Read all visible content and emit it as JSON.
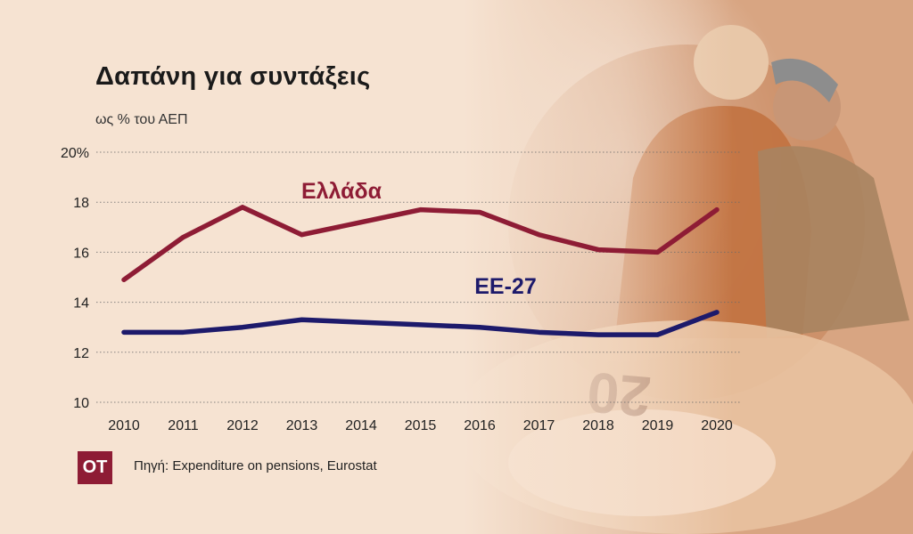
{
  "title": "Δαπάνη για συντάξεις",
  "subtitle": "ως % του ΑΕΠ",
  "logo": "OT",
  "source": "Πηγή: Expenditure on pensions, Eurostat",
  "colors": {
    "greece": "#8e1c35",
    "eu27": "#1d1a6b",
    "background": "#f6e3d2"
  },
  "chart_data": {
    "type": "line",
    "x": [
      "2010",
      "2011",
      "2012",
      "2013",
      "2014",
      "2015",
      "2016",
      "2017",
      "2018",
      "2019",
      "2020"
    ],
    "yticks": [
      "20%",
      "18",
      "16",
      "14",
      "12",
      "10"
    ],
    "ylim": [
      10,
      20
    ],
    "grid": true,
    "series": [
      {
        "name": "Ελλάδα",
        "color": "#8e1c35",
        "values": [
          14.9,
          16.6,
          17.8,
          16.7,
          17.2,
          17.7,
          17.6,
          16.7,
          16.1,
          16.0,
          17.7
        ]
      },
      {
        "name": "ΕΕ-27",
        "color": "#1d1a6b",
        "values": [
          12.8,
          12.8,
          13.0,
          13.3,
          13.2,
          13.1,
          13.0,
          12.8,
          12.7,
          12.7,
          13.6
        ]
      }
    ]
  }
}
